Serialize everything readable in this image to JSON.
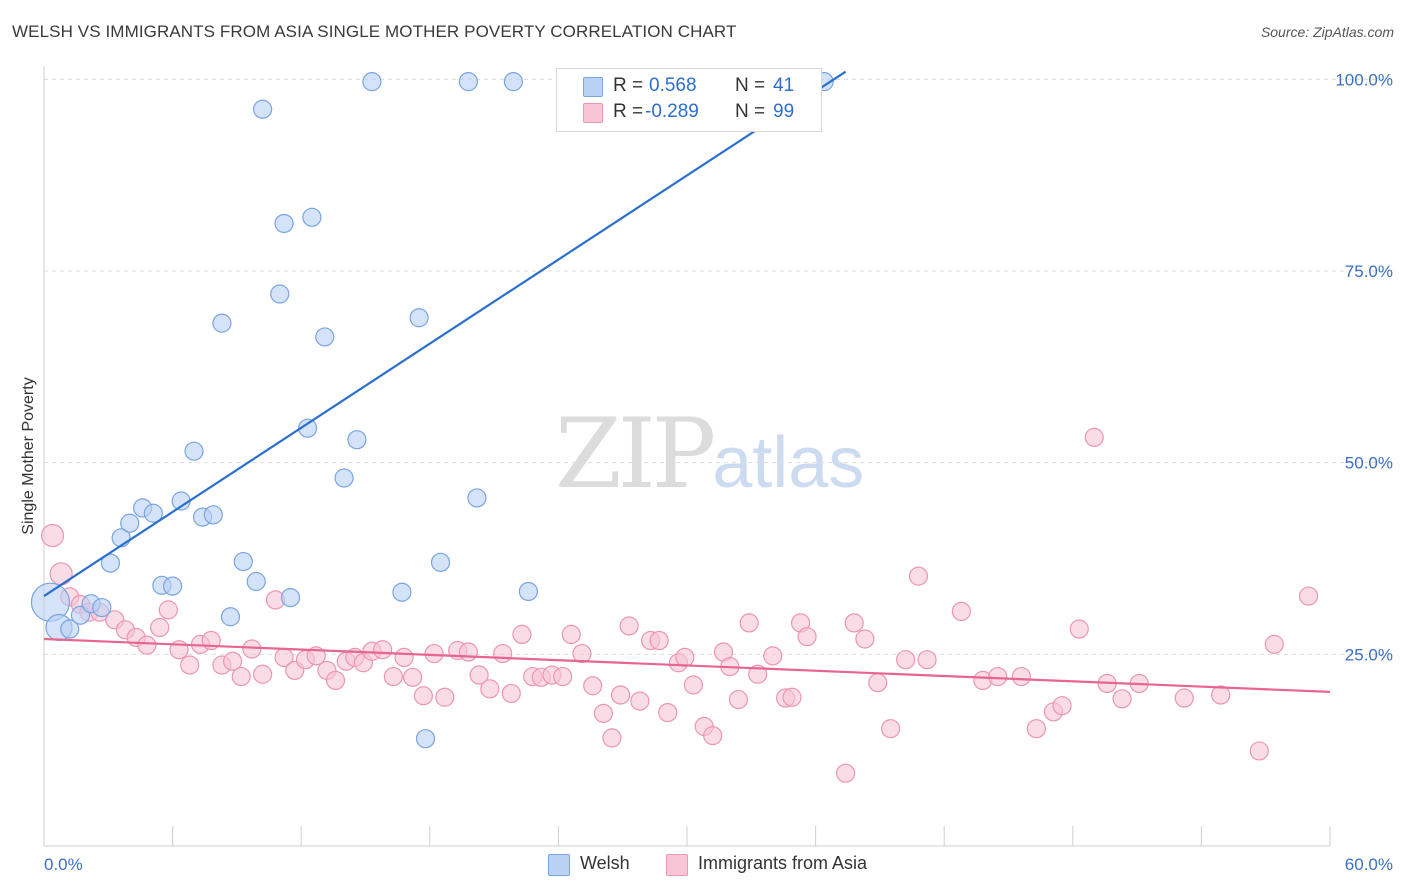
{
  "header": {
    "title": "WELSH VS IMMIGRANTS FROM ASIA SINGLE MOTHER POVERTY CORRELATION CHART",
    "source": "Source: ZipAtlas.com"
  },
  "watermark": {
    "zip": "ZIP",
    "atlas": "atlas"
  },
  "legend": {
    "welsh": {
      "r_label": "R =",
      "r_value": "0.568",
      "n_label": "N =",
      "n_value": "41"
    },
    "asia": {
      "r_label": "R =",
      "r_value": "-0.289",
      "n_label": "N =",
      "n_value": "99"
    }
  },
  "bottom_legend": {
    "welsh": "Welsh",
    "asia": "Immigrants from Asia"
  },
  "colors": {
    "welsh_fill": "#b9d1f3",
    "welsh_stroke": "#7aa4e0",
    "welsh_line": "#2a6fce",
    "asia_fill": "#f7c5d5",
    "asia_stroke": "#eb96b2",
    "asia_line": "#e7658f",
    "axis_text": "#3b6fc4",
    "grid": "#dddddd"
  },
  "chart_data": {
    "type": "scatter",
    "title": "WELSH VS IMMIGRANTS FROM ASIA SINGLE MOTHER POVERTY CORRELATION CHART",
    "xlabel": "",
    "ylabel": "Single Mother Poverty",
    "xlim": [
      0,
      60
    ],
    "ylim": [
      0,
      102
    ],
    "x_tick_labels": [
      "0.0%",
      "60.0%"
    ],
    "y_ticks": [
      25,
      50,
      75,
      100
    ],
    "y_tick_labels": [
      "25.0%",
      "50.0%",
      "75.0%",
      "100.0%"
    ],
    "grid": true,
    "legend_position": "top-center",
    "series": [
      {
        "name": "Welsh",
        "r": 0.568,
        "n": 41,
        "trend": {
          "x": [
            0.0,
            37.4
          ],
          "y": [
            32.6,
            101.0
          ]
        },
        "points": [
          [
            0.3,
            31.8
          ],
          [
            0.7,
            28.5
          ],
          [
            1.2,
            28.3
          ],
          [
            1.7,
            30.1
          ],
          [
            2.2,
            31.6
          ],
          [
            2.7,
            31.1
          ],
          [
            3.1,
            36.9
          ],
          [
            3.6,
            40.2
          ],
          [
            4.0,
            42.1
          ],
          [
            4.6,
            44.1
          ],
          [
            5.1,
            43.4
          ],
          [
            5.5,
            34.0
          ],
          [
            6.0,
            33.9
          ],
          [
            6.4,
            45.0
          ],
          [
            7.0,
            51.5
          ],
          [
            7.4,
            42.9
          ],
          [
            7.9,
            43.2
          ],
          [
            8.3,
            68.2
          ],
          [
            8.7,
            29.9
          ],
          [
            9.3,
            37.1
          ],
          [
            9.9,
            34.5
          ],
          [
            10.2,
            96.1
          ],
          [
            11.0,
            72.0
          ],
          [
            11.2,
            81.2
          ],
          [
            11.5,
            32.4
          ],
          [
            12.3,
            54.5
          ],
          [
            12.5,
            82.0
          ],
          [
            13.1,
            66.4
          ],
          [
            14.0,
            48.0
          ],
          [
            14.6,
            53.0
          ],
          [
            15.3,
            99.7
          ],
          [
            16.7,
            33.1
          ],
          [
            17.5,
            68.9
          ],
          [
            17.8,
            14.0
          ],
          [
            18.5,
            37.0
          ],
          [
            19.8,
            99.7
          ],
          [
            20.2,
            45.4
          ],
          [
            21.9,
            99.7
          ],
          [
            22.6,
            33.2
          ],
          [
            24.7,
            99.7
          ],
          [
            36.4,
            99.7
          ]
        ]
      },
      {
        "name": "Immigrants from Asia",
        "r": -0.289,
        "n": 99,
        "trend": {
          "x": [
            0.0,
            60.0
          ],
          "y": [
            27.0,
            20.1
          ]
        },
        "points": [
          [
            0.4,
            40.5
          ],
          [
            0.8,
            35.5
          ],
          [
            1.2,
            32.5
          ],
          [
            1.7,
            31.5
          ],
          [
            2.1,
            30.5
          ],
          [
            2.6,
            30.5
          ],
          [
            3.3,
            29.5
          ],
          [
            3.8,
            28.2
          ],
          [
            4.3,
            27.2
          ],
          [
            4.8,
            26.2
          ],
          [
            5.4,
            28.5
          ],
          [
            5.8,
            30.8
          ],
          [
            6.3,
            25.6
          ],
          [
            6.8,
            23.6
          ],
          [
            7.3,
            26.3
          ],
          [
            7.8,
            26.8
          ],
          [
            8.3,
            23.6
          ],
          [
            8.8,
            24.1
          ],
          [
            9.2,
            22.1
          ],
          [
            9.7,
            25.7
          ],
          [
            10.2,
            22.4
          ],
          [
            10.8,
            32.1
          ],
          [
            11.2,
            24.6
          ],
          [
            11.7,
            22.9
          ],
          [
            12.2,
            24.3
          ],
          [
            12.7,
            24.8
          ],
          [
            13.2,
            22.9
          ],
          [
            13.6,
            21.6
          ],
          [
            14.1,
            24.1
          ],
          [
            14.5,
            24.6
          ],
          [
            14.9,
            23.9
          ],
          [
            15.3,
            25.4
          ],
          [
            15.8,
            25.6
          ],
          [
            16.3,
            22.1
          ],
          [
            16.8,
            24.6
          ],
          [
            17.2,
            22.0
          ],
          [
            17.7,
            19.6
          ],
          [
            18.2,
            25.1
          ],
          [
            18.7,
            19.4
          ],
          [
            19.3,
            25.5
          ],
          [
            19.8,
            25.3
          ],
          [
            20.3,
            22.3
          ],
          [
            20.8,
            20.5
          ],
          [
            21.4,
            25.1
          ],
          [
            21.8,
            19.9
          ],
          [
            22.3,
            27.6
          ],
          [
            22.8,
            22.1
          ],
          [
            23.2,
            22.0
          ],
          [
            23.7,
            22.3
          ],
          [
            24.2,
            22.1
          ],
          [
            24.6,
            27.6
          ],
          [
            25.1,
            25.1
          ],
          [
            25.6,
            20.9
          ],
          [
            26.1,
            17.3
          ],
          [
            26.5,
            14.1
          ],
          [
            26.9,
            19.7
          ],
          [
            27.3,
            28.7
          ],
          [
            27.8,
            18.9
          ],
          [
            28.3,
            26.8
          ],
          [
            28.7,
            26.8
          ],
          [
            29.1,
            17.4
          ],
          [
            29.6,
            23.9
          ],
          [
            29.9,
            24.6
          ],
          [
            30.3,
            21.0
          ],
          [
            30.8,
            15.6
          ],
          [
            31.2,
            14.4
          ],
          [
            31.7,
            25.3
          ],
          [
            32.0,
            23.4
          ],
          [
            32.4,
            19.1
          ],
          [
            32.9,
            29.1
          ],
          [
            33.3,
            22.4
          ],
          [
            34.0,
            24.8
          ],
          [
            34.6,
            19.3
          ],
          [
            34.9,
            19.4
          ],
          [
            35.3,
            29.1
          ],
          [
            35.6,
            27.3
          ],
          [
            37.4,
            9.5
          ],
          [
            37.8,
            29.1
          ],
          [
            38.3,
            27.0
          ],
          [
            38.9,
            21.3
          ],
          [
            39.5,
            15.3
          ],
          [
            40.2,
            24.3
          ],
          [
            40.8,
            35.2
          ],
          [
            41.2,
            24.3
          ],
          [
            42.8,
            30.6
          ],
          [
            43.8,
            21.6
          ],
          [
            44.5,
            22.1
          ],
          [
            45.6,
            22.1
          ],
          [
            46.3,
            15.3
          ],
          [
            47.1,
            17.5
          ],
          [
            47.5,
            18.3
          ],
          [
            48.3,
            28.3
          ],
          [
            49.0,
            53.3
          ],
          [
            49.6,
            21.2
          ],
          [
            50.3,
            19.2
          ],
          [
            51.1,
            21.2
          ],
          [
            53.2,
            19.3
          ],
          [
            54.9,
            19.7
          ],
          [
            56.7,
            12.4
          ],
          [
            57.4,
            26.3
          ],
          [
            59.0,
            32.6
          ]
        ]
      }
    ]
  }
}
